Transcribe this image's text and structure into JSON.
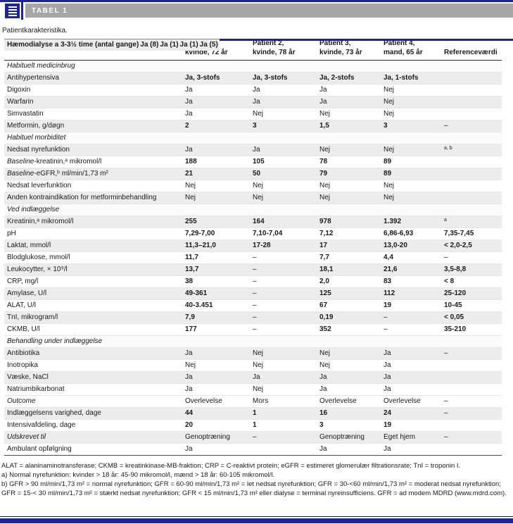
{
  "chrome": {
    "tag_label": "TABEL 1",
    "caption": "Patientkarakteristika.",
    "accent_navy": "#1d2593",
    "bar_gray": "#a6a6a6",
    "stripe_gray": "#ececec",
    "icon": "table-document-icon"
  },
  "table": {
    "col_headers": [
      {
        "line1": "Patient 1,",
        "line2": "kvinde, 72 år"
      },
      {
        "line1": "Patient 2,",
        "line2": "kvinde, 78 år"
      },
      {
        "line1": "Patient 3,",
        "line2": "kvinde, 73 år"
      },
      {
        "line1": "Patient 4,",
        "line2": "mand, 65 år"
      },
      {
        "line1": "",
        "line2": "Referenceværdi"
      }
    ],
    "rows": [
      {
        "type": "section",
        "label": "Habituelt medicinbrug"
      },
      {
        "label": "Antihypertensiva",
        "cells": [
          "Ja, 3-stofs",
          "Ja, 3-stofs",
          "Ja, 2-stofs",
          "Ja, 1-stofs",
          ""
        ]
      },
      {
        "label": "Digoxin",
        "cells": [
          "Ja",
          "Ja",
          "Ja",
          "Nej",
          ""
        ]
      },
      {
        "label": "Warfarin",
        "cells": [
          "Ja",
          "Ja",
          "Ja",
          "Nej",
          ""
        ]
      },
      {
        "label": "Simvastatin",
        "cells": [
          "Ja",
          "Nej",
          "Nej",
          "Nej",
          ""
        ]
      },
      {
        "label": "Metformin, g/døgn",
        "cells": [
          "2",
          "3",
          "1,5",
          "3",
          "–"
        ]
      },
      {
        "type": "section",
        "label": "Habituel morbiditet"
      },
      {
        "label": "Nedsat nyrefunktion",
        "cells": [
          "Ja",
          "Ja",
          "Nej",
          "Nej",
          "^a, b"
        ]
      },
      {
        "iprefix": "Baseline",
        "label": "-kreatinin,ᵃ mikromol/l",
        "cells": [
          "188",
          "105",
          "78",
          "89",
          ""
        ]
      },
      {
        "iprefix": "Baseline",
        "label": "-eGFR,ᵇ ml/min/1,73 m²",
        "cells": [
          "21",
          "50",
          "79",
          "89",
          ""
        ]
      },
      {
        "label": "Nedsat leverfunktion",
        "cells": [
          "Nej",
          "Nej",
          "Nej",
          "Nej",
          ""
        ]
      },
      {
        "label": "Anden kontraindikation for metforminbehandling",
        "cells": [
          "Nej",
          "Nej",
          "Nej",
          "Nej",
          ""
        ]
      },
      {
        "type": "section",
        "label": "Ved indlæggelse"
      },
      {
        "label": "Kreatinin,ᵃ mikromol/l",
        "cells": [
          "255",
          "164",
          "978",
          "1.392",
          "^a"
        ]
      },
      {
        "label": "pH",
        "cells": [
          "7,29-7,00",
          "7,10-7,04",
          "7,12",
          "6,86-6,93",
          "7,35-7,45"
        ]
      },
      {
        "label": "Laktat, mmol/l",
        "cells": [
          "11,3–21,0",
          "17-28",
          "17",
          "13,0-20",
          "< 2,0-2,5"
        ]
      },
      {
        "label": "Blodglukose, mmol/l",
        "cells": [
          "11,7",
          "–",
          "7,7",
          "4,4",
          "–"
        ]
      },
      {
        "label": "Leukocytter, × 10⁹/l",
        "cells": [
          "13,7",
          "–",
          "18,1",
          "21,6",
          "3,5-8,8"
        ]
      },
      {
        "label": "CRP, mg/l",
        "cells": [
          "38",
          "–",
          "2,0",
          "83",
          "< 8"
        ]
      },
      {
        "label": "Amylase, U/l",
        "cells": [
          "49-361",
          "–",
          "125",
          "112",
          "25-120"
        ]
      },
      {
        "label": "ALAT, U/l",
        "cells": [
          "40-3.451",
          "–",
          "67",
          "19",
          "10-45"
        ]
      },
      {
        "label": "TnI, mikrogram/l",
        "cells": [
          "7,9",
          "–",
          "0,19",
          "–",
          "< 0,05"
        ]
      },
      {
        "label": "CKMB, U/l",
        "cells": [
          "177",
          "–",
          "352",
          "–",
          "35-210"
        ]
      },
      {
        "type": "section",
        "label": "Behandling under indlæggelse"
      },
      {
        "label": "Antibiotika",
        "cells": [
          "Ja",
          "Nej",
          "Nej",
          "Ja",
          "–"
        ]
      },
      {
        "label": "Inotropika",
        "cells": [
          "Nej",
          "Nej",
          "Nej",
          "Ja",
          ""
        ]
      },
      {
        "label": "Væske, NaCl",
        "cells": [
          "Ja",
          "Ja",
          "Ja",
          "Ja",
          ""
        ]
      },
      {
        "label": "Natriumbikarbonat",
        "cells": [
          "Ja",
          "Nej",
          "Ja",
          "Ja",
          ""
        ]
      },
      {
        "label": "Hæmodialyse a 3-3½ time (antal gange)",
        "bold": true,
        "topline": true,
        "cells": [
          "Ja (8)",
          "Ja (1)",
          "Ja (1)",
          "Ja (5)",
          ""
        ]
      },
      {
        "label": "Outcome",
        "italic": true,
        "cells": [
          "Overlevelse",
          "Mors",
          "Overlevelse",
          "Overlevelse",
          "–"
        ]
      },
      {
        "label": "Indlæggelsens varighed, dage",
        "cells": [
          "44",
          "1",
          "16",
          "24",
          "–"
        ]
      },
      {
        "label": "Intensivafdeling, dage",
        "cells": [
          "20",
          "1",
          "3",
          "19",
          ""
        ]
      },
      {
        "label": "Udskrevet til",
        "italic": true,
        "cells": [
          "Genoptræning",
          "–",
          "Genoptræning",
          "Eget hjem",
          "–"
        ]
      },
      {
        "label": "Ambulant opfølgning",
        "cells": [
          "Ja",
          "",
          "Ja",
          "Ja",
          ""
        ]
      }
    ]
  },
  "footnotes": [
    "ALAT = alaninaminotransferase; CKMB = kreatinkinase-MB-fraktion; CRP = C-reaktivt protein; eGFR = estimeret glomerulær filtrationsrate; TnI = troponin I.",
    "a) Normal nyrefunktion: kvinder > 18 år: 45-90 mikromol/l, mænd > 18 år: 60-105 mikromol/l.",
    "b) GFR > 90 ml/min/1,73 m² = normal nyrefunktion; GFR = 60-90 ml/min/1,73 m² = let nedsat nyrefunktion; GFR = 30-<60 ml/min/1,73 m² = moderat nedsat nyrefunktion; GFR = 15-< 30 ml/min/1,73 m² = stærkt nedsat nyrefunktion; GFR < 15 ml/min/1,73 m² eller dialyse = terminal nyreinsufficiens. GFR = ad modem MDRD (www.mdrd.com)."
  ]
}
